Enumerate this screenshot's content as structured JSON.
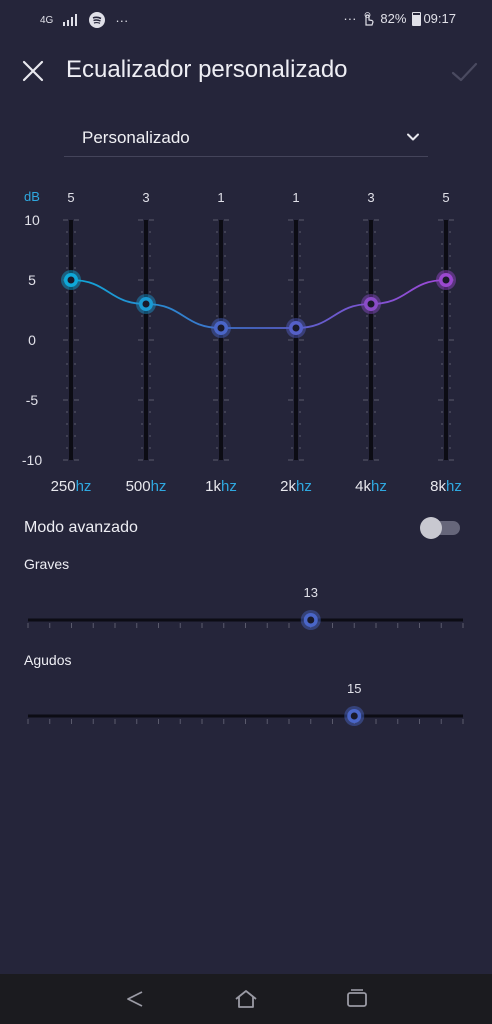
{
  "status_bar": {
    "network": "4G",
    "more": "···",
    "battery": "82%",
    "time": "09:17"
  },
  "header": {
    "title": "Ecualizador personalizado"
  },
  "preset": {
    "selected": "Personalizado"
  },
  "equalizer": {
    "unit_label": "dB",
    "y_ticks": [
      "10",
      "5",
      "0",
      "-5",
      "-10"
    ],
    "bands": [
      {
        "num": "250",
        "unit": "hz",
        "value": 5,
        "value_label": "5",
        "color": "#0fa8d8"
      },
      {
        "num": "500",
        "unit": "hz",
        "value": 3,
        "value_label": "3",
        "color": "#1a9ad2"
      },
      {
        "num": "1k",
        "unit": "hz",
        "value": 1,
        "value_label": "1",
        "color": "#4a66c8"
      },
      {
        "num": "2k",
        "unit": "hz",
        "value": 1,
        "value_label": "1",
        "color": "#5560c8"
      },
      {
        "num": "4k",
        "unit": "hz",
        "value": 3,
        "value_label": "3",
        "color": "#8a4cc8"
      },
      {
        "num": "8k",
        "unit": "hz",
        "value": 5,
        "value_label": "5",
        "color": "#9a48d0"
      }
    ],
    "unit_color": "#2fa8e0"
  },
  "advanced": {
    "label": "Modo avanzado",
    "enabled": false
  },
  "sliders": [
    {
      "label": "Graves",
      "value": 13,
      "value_label": "13",
      "max": 20
    },
    {
      "label": "Agudos",
      "value": 15,
      "value_label": "15",
      "max": 20
    }
  ]
}
